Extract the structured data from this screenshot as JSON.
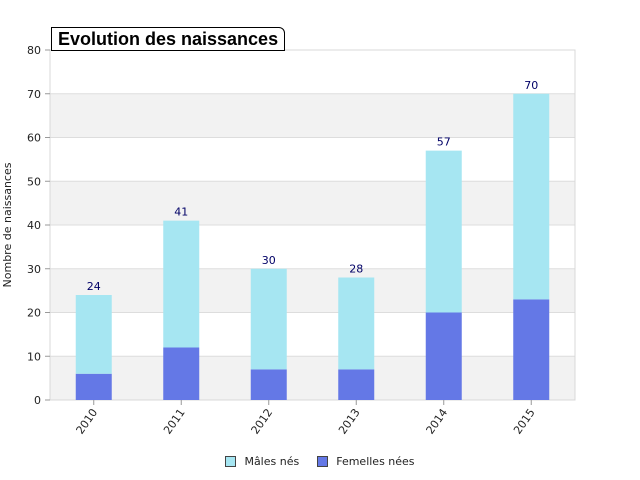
{
  "chart_data": {
    "type": "bar",
    "stacked": true,
    "title": "Evolution des naissances",
    "ylabel": "Nombre de naissances",
    "xlabel": "",
    "ylim": [
      0,
      80
    ],
    "yticks": [
      0,
      10,
      20,
      30,
      40,
      50,
      60,
      70,
      80
    ],
    "grid": true,
    "legend_position": "bottom",
    "categories": [
      "2010",
      "2011",
      "2012",
      "2013",
      "2014",
      "2015"
    ],
    "totals": [
      "24",
      "41",
      "30",
      "28",
      "57",
      "70"
    ],
    "series": [
      {
        "name": "Femelles nées",
        "color": "#6478e6",
        "values": [
          6,
          12,
          7,
          7,
          20,
          23
        ]
      },
      {
        "name": "Mâles nés",
        "color": "#a6e6f2",
        "values": [
          18,
          29,
          23,
          21,
          37,
          47
        ]
      }
    ]
  }
}
